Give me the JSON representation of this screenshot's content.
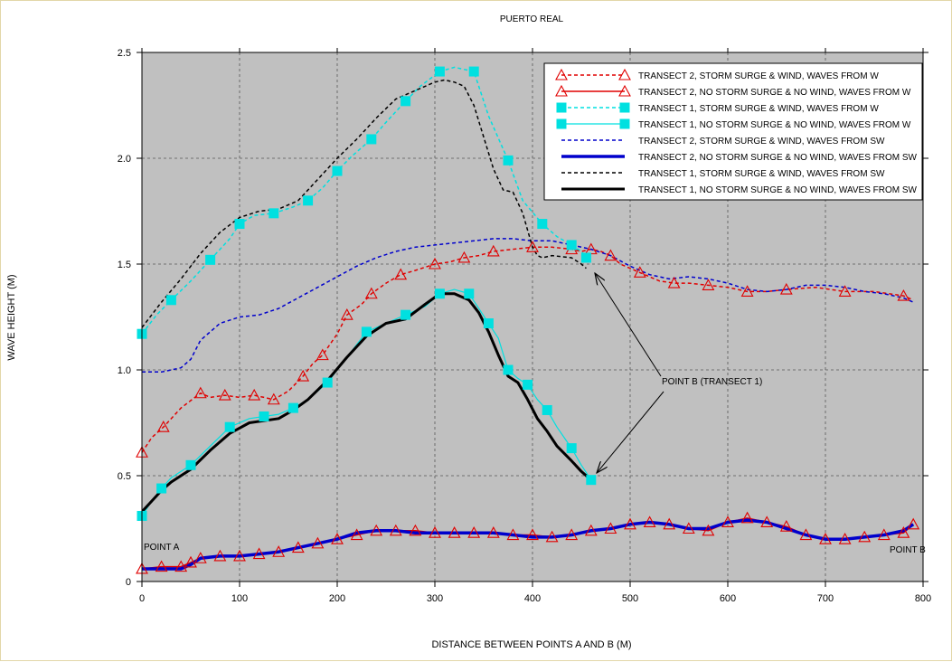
{
  "chart_data": {
    "type": "line",
    "title": "PUERTO REAL",
    "xlabel": "DISTANCE BETWEEN POINTS A AND B (M)",
    "ylabel": "WAVE HEIGHT (M)",
    "xlim": [
      0,
      800
    ],
    "ylim": [
      0,
      2.5
    ],
    "xticks": [
      0,
      100,
      200,
      300,
      400,
      500,
      600,
      700,
      800
    ],
    "yticks": [
      0,
      0.5,
      1.0,
      1.5,
      2.0,
      2.5
    ],
    "xtick_labels": [
      "0",
      "100",
      "200",
      "300",
      "400",
      "500",
      "600",
      "700",
      "800"
    ],
    "ytick_labels": [
      "0",
      "0.5",
      "1.0",
      "1.5",
      "2.0",
      "2.5"
    ],
    "grid": true,
    "legend_position": "top-right",
    "annotations": {
      "point_a": "POINT A",
      "point_b": "POINT B",
      "point_b_transect1": "POINT B (TRANSECT 1)"
    },
    "colors": {
      "plot_bg": "#c0c0c0",
      "red": "#e00000",
      "cyan": "#00e0e0",
      "blue": "#0000cc",
      "black": "#000000"
    },
    "series": [
      {
        "name": "TRANSECT 2, STORM SURGE & WIND, WAVES FROM W",
        "x": [
          0,
          10,
          22,
          40,
          60,
          70,
          85,
          100,
          115,
          125,
          135,
          150,
          165,
          175,
          185,
          200,
          210,
          225,
          235,
          250,
          265,
          280,
          300,
          315,
          330,
          345,
          360,
          380,
          400,
          420,
          440,
          450,
          460,
          470,
          480,
          490,
          510,
          530,
          545,
          560,
          580,
          600,
          620,
          640,
          660,
          690,
          720,
          750,
          780,
          790
        ],
        "y": [
          0.61,
          0.68,
          0.73,
          0.82,
          0.89,
          0.87,
          0.88,
          0.87,
          0.88,
          0.87,
          0.86,
          0.9,
          0.97,
          1.03,
          1.07,
          1.17,
          1.26,
          1.31,
          1.36,
          1.41,
          1.45,
          1.47,
          1.5,
          1.51,
          1.53,
          1.54,
          1.56,
          1.57,
          1.58,
          1.58,
          1.57,
          1.56,
          1.57,
          1.56,
          1.54,
          1.5,
          1.46,
          1.42,
          1.41,
          1.41,
          1.4,
          1.39,
          1.37,
          1.37,
          1.38,
          1.39,
          1.37,
          1.37,
          1.35,
          1.33
        ]
      },
      {
        "name": "TRANSECT 2, NO STORM SURGE & NO WIND, WAVES FROM W",
        "x": [
          0,
          20,
          40,
          50,
          60,
          80,
          100,
          120,
          140,
          160,
          180,
          200,
          220,
          240,
          260,
          280,
          300,
          320,
          340,
          360,
          380,
          400,
          420,
          440,
          460,
          480,
          500,
          520,
          540,
          560,
          580,
          600,
          620,
          640,
          660,
          680,
          700,
          720,
          740,
          760,
          780,
          790
        ],
        "y": [
          0.06,
          0.07,
          0.07,
          0.09,
          0.11,
          0.12,
          0.12,
          0.13,
          0.14,
          0.16,
          0.18,
          0.2,
          0.22,
          0.24,
          0.24,
          0.24,
          0.23,
          0.23,
          0.23,
          0.23,
          0.22,
          0.22,
          0.21,
          0.22,
          0.24,
          0.25,
          0.27,
          0.28,
          0.27,
          0.25,
          0.24,
          0.28,
          0.3,
          0.28,
          0.26,
          0.22,
          0.2,
          0.2,
          0.21,
          0.22,
          0.23,
          0.27
        ]
      },
      {
        "name": "TRANSECT 1, STORM SURGE & WIND, WAVES FROM W",
        "x": [
          0,
          15,
          30,
          50,
          70,
          90,
          100,
          115,
          135,
          155,
          170,
          185,
          200,
          215,
          235,
          250,
          270,
          285,
          305,
          320,
          340,
          355,
          375,
          390,
          410,
          425,
          440,
          450,
          455
        ],
        "y": [
          1.17,
          1.26,
          1.33,
          1.42,
          1.52,
          1.62,
          1.69,
          1.73,
          1.74,
          1.77,
          1.8,
          1.86,
          1.94,
          2.01,
          2.09,
          2.17,
          2.27,
          2.34,
          2.41,
          2.43,
          2.41,
          2.2,
          1.99,
          1.8,
          1.69,
          1.63,
          1.59,
          1.56,
          1.53
        ]
      },
      {
        "name": "TRANSECT 1, NO STORM SURGE & NO WIND, WAVES FROM W",
        "x": [
          0,
          10,
          20,
          30,
          50,
          70,
          90,
          110,
          125,
          140,
          155,
          170,
          190,
          210,
          230,
          250,
          270,
          290,
          305,
          320,
          335,
          345,
          355,
          365,
          375,
          385,
          395,
          405,
          415,
          425,
          440,
          450,
          460
        ],
        "y": [
          0.31,
          0.38,
          0.44,
          0.49,
          0.55,
          0.64,
          0.73,
          0.77,
          0.78,
          0.79,
          0.82,
          0.86,
          0.94,
          1.06,
          1.18,
          1.22,
          1.26,
          1.3,
          1.36,
          1.38,
          1.36,
          1.29,
          1.22,
          1.15,
          1.0,
          0.96,
          0.93,
          0.86,
          0.81,
          0.73,
          0.63,
          0.55,
          0.48
        ]
      },
      {
        "name": "TRANSECT 2, STORM SURGE & WIND, WAVES FROM SW",
        "x": [
          0,
          20,
          40,
          50,
          60,
          80,
          100,
          120,
          140,
          160,
          180,
          200,
          220,
          240,
          260,
          280,
          300,
          320,
          340,
          360,
          380,
          400,
          420,
          440,
          460,
          480,
          500,
          520,
          540,
          560,
          580,
          600,
          620,
          640,
          660,
          680,
          700,
          720,
          740,
          760,
          780,
          790
        ],
        "y": [
          0.99,
          0.99,
          1.01,
          1.05,
          1.14,
          1.22,
          1.25,
          1.26,
          1.29,
          1.34,
          1.39,
          1.44,
          1.49,
          1.53,
          1.56,
          1.58,
          1.59,
          1.6,
          1.61,
          1.62,
          1.62,
          1.61,
          1.61,
          1.59,
          1.57,
          1.54,
          1.49,
          1.45,
          1.43,
          1.44,
          1.43,
          1.41,
          1.38,
          1.37,
          1.38,
          1.4,
          1.4,
          1.39,
          1.37,
          1.36,
          1.34,
          1.32
        ]
      },
      {
        "name": "TRANSECT 2, NO STORM SURGE & NO WIND, WAVES FROM SW",
        "x": [
          0,
          20,
          40,
          50,
          60,
          80,
          100,
          120,
          140,
          160,
          180,
          200,
          220,
          240,
          260,
          280,
          300,
          320,
          340,
          360,
          380,
          400,
          420,
          440,
          460,
          480,
          500,
          520,
          540,
          560,
          580,
          600,
          620,
          640,
          660,
          680,
          700,
          720,
          740,
          760,
          780,
          790
        ],
        "y": [
          0.06,
          0.06,
          0.06,
          0.08,
          0.11,
          0.12,
          0.12,
          0.13,
          0.14,
          0.16,
          0.18,
          0.2,
          0.23,
          0.24,
          0.24,
          0.23,
          0.23,
          0.23,
          0.23,
          0.23,
          0.22,
          0.21,
          0.21,
          0.22,
          0.24,
          0.25,
          0.27,
          0.28,
          0.27,
          0.25,
          0.25,
          0.28,
          0.29,
          0.28,
          0.25,
          0.22,
          0.2,
          0.2,
          0.21,
          0.22,
          0.24,
          0.27
        ]
      },
      {
        "name": "TRANSECT 1, STORM SURGE & WIND, WAVES FROM SW",
        "x": [
          0,
          20,
          40,
          60,
          80,
          100,
          120,
          140,
          160,
          180,
          200,
          220,
          240,
          260,
          280,
          300,
          310,
          320,
          330,
          340,
          350,
          360,
          370,
          380,
          390,
          395,
          400,
          405,
          410,
          420,
          440,
          450,
          455
        ],
        "y": [
          1.2,
          1.32,
          1.43,
          1.55,
          1.65,
          1.72,
          1.75,
          1.76,
          1.8,
          1.9,
          2.0,
          2.09,
          2.19,
          2.28,
          2.32,
          2.36,
          2.37,
          2.36,
          2.34,
          2.25,
          2.1,
          1.95,
          1.85,
          1.84,
          1.74,
          1.66,
          1.58,
          1.54,
          1.53,
          1.54,
          1.53,
          1.5,
          1.48
        ]
      },
      {
        "name": "TRANSECT 1, NO STORM SURGE & NO WIND, WAVES FROM SW",
        "x": [
          0,
          10,
          20,
          30,
          50,
          70,
          90,
          110,
          125,
          140,
          155,
          170,
          190,
          210,
          230,
          250,
          270,
          290,
          305,
          320,
          335,
          345,
          355,
          365,
          375,
          385,
          395,
          405,
          415,
          425,
          440,
          450,
          460
        ],
        "y": [
          0.33,
          0.38,
          0.43,
          0.47,
          0.53,
          0.62,
          0.7,
          0.75,
          0.76,
          0.77,
          0.81,
          0.86,
          0.95,
          1.06,
          1.16,
          1.22,
          1.24,
          1.31,
          1.36,
          1.36,
          1.33,
          1.27,
          1.18,
          1.07,
          0.97,
          0.94,
          0.86,
          0.77,
          0.71,
          0.64,
          0.57,
          0.52,
          0.48
        ]
      }
    ]
  }
}
